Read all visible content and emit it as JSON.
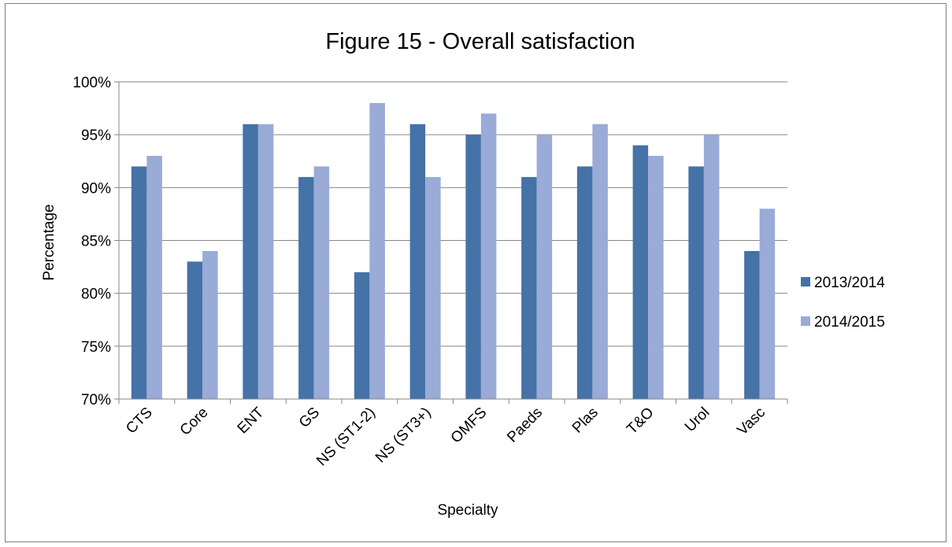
{
  "chart_data": {
    "type": "bar",
    "title": "Figure 15 - Overall satisfaction",
    "xlabel": "Specialty",
    "ylabel": "Percentage",
    "categories": [
      "CTS",
      "Core",
      "ENT",
      "GS",
      "NS (ST1-2)",
      "NS (ST3+)",
      "OMFS",
      "Paeds",
      "Plas",
      "T&O",
      "Urol",
      "Vasc"
    ],
    "series": [
      {
        "name": "2013/2014",
        "color": "#4572a7",
        "values": [
          92,
          83,
          96,
          91,
          82,
          96,
          95,
          91,
          92,
          94,
          92,
          84
        ]
      },
      {
        "name": "2014/2015",
        "color": "#99abd6",
        "values": [
          93,
          84,
          96,
          92,
          98,
          91,
          97,
          95,
          96,
          93,
          95,
          88
        ]
      }
    ],
    "ylim": [
      70,
      100
    ],
    "yticks": [
      70,
      75,
      80,
      85,
      90,
      95,
      100
    ],
    "ytick_labels": [
      "70%",
      "75%",
      "80%",
      "85%",
      "90%",
      "95%",
      "100%"
    ],
    "grid": true,
    "legend_position": "right"
  }
}
